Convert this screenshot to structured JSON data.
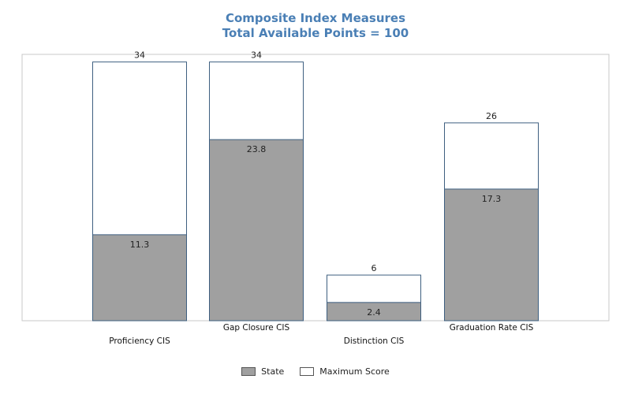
{
  "chart_data": {
    "type": "bar",
    "title": "Composite Index Measures",
    "subtitle": "Total Available Points = 100",
    "categories": [
      "Proficiency CIS",
      "Gap Closure CIS",
      "Distinction CIS",
      "Graduation Rate CIS"
    ],
    "series": [
      {
        "name": "State",
        "values": [
          11.3,
          23.8,
          2.4,
          17.3
        ],
        "color": "#a0a0a0"
      },
      {
        "name": "Maximum Score",
        "values": [
          34,
          34,
          6,
          26
        ],
        "color": "#ffffff"
      }
    ],
    "ylim": [
      0,
      35
    ],
    "grid": false,
    "legend": "bottom-center"
  }
}
